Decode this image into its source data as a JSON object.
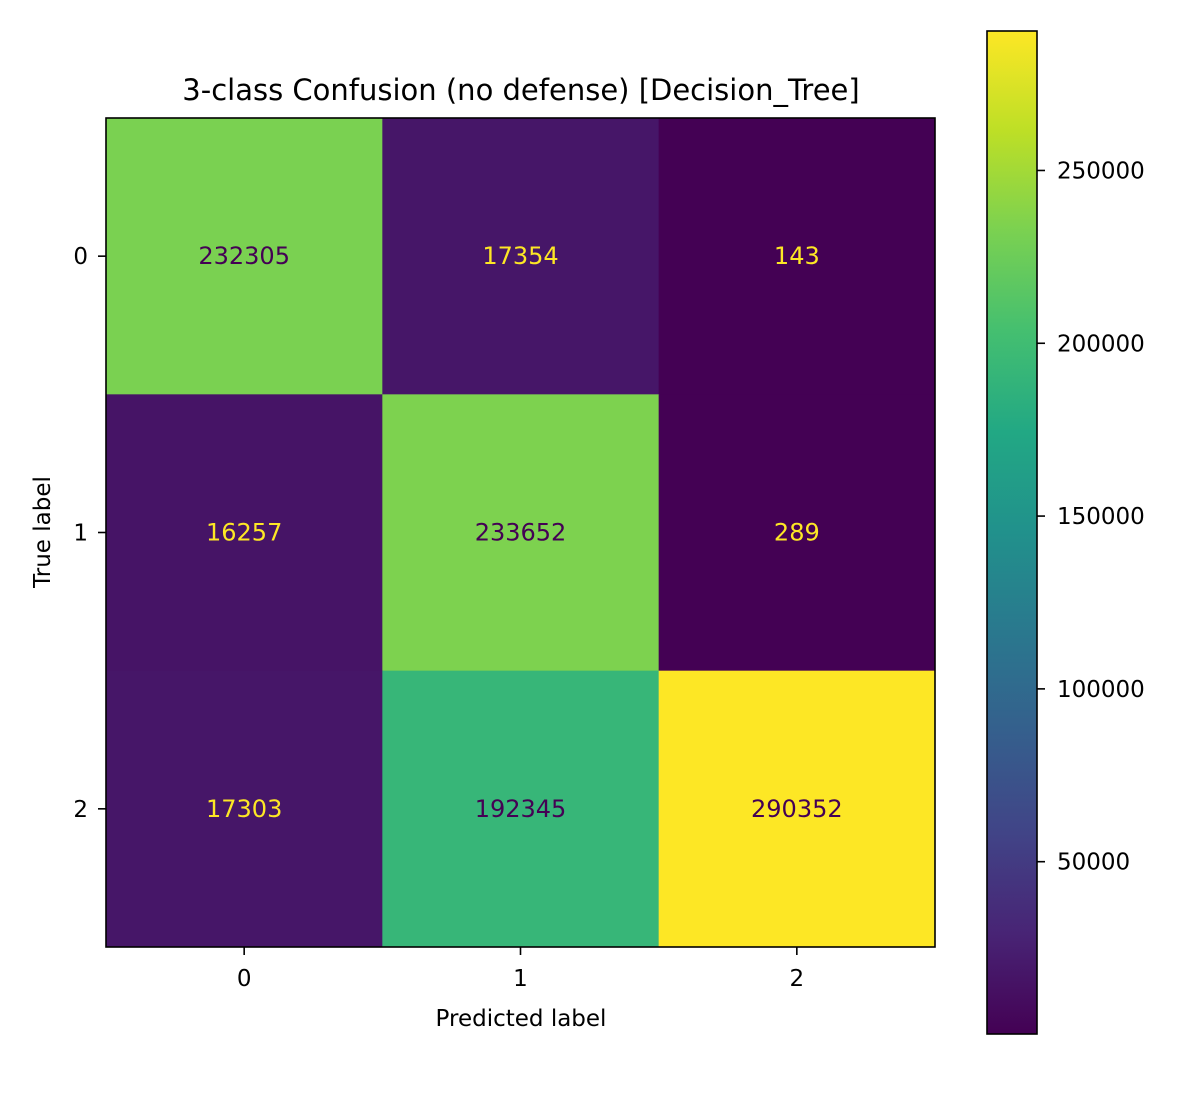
{
  "chart_data": {
    "type": "heatmap",
    "title": "3-class Confusion (no defense) [Decision_Tree]",
    "xlabel": "Predicted label",
    "ylabel": "True label",
    "x_categories": [
      "0",
      "1",
      "2"
    ],
    "y_categories": [
      "0",
      "1",
      "2"
    ],
    "matrix": [
      [
        232305,
        17354,
        143
      ],
      [
        16257,
        233652,
        289
      ],
      [
        17303,
        192345,
        290352
      ]
    ],
    "colormap": "viridis",
    "colorbar": {
      "min": 143,
      "max": 290352,
      "ticks": [
        50000,
        100000,
        150000,
        200000,
        250000
      ]
    },
    "text_color_dark": "#440154",
    "text_color_light": "#fde725",
    "grid": false,
    "legend": "colorbar-right"
  }
}
